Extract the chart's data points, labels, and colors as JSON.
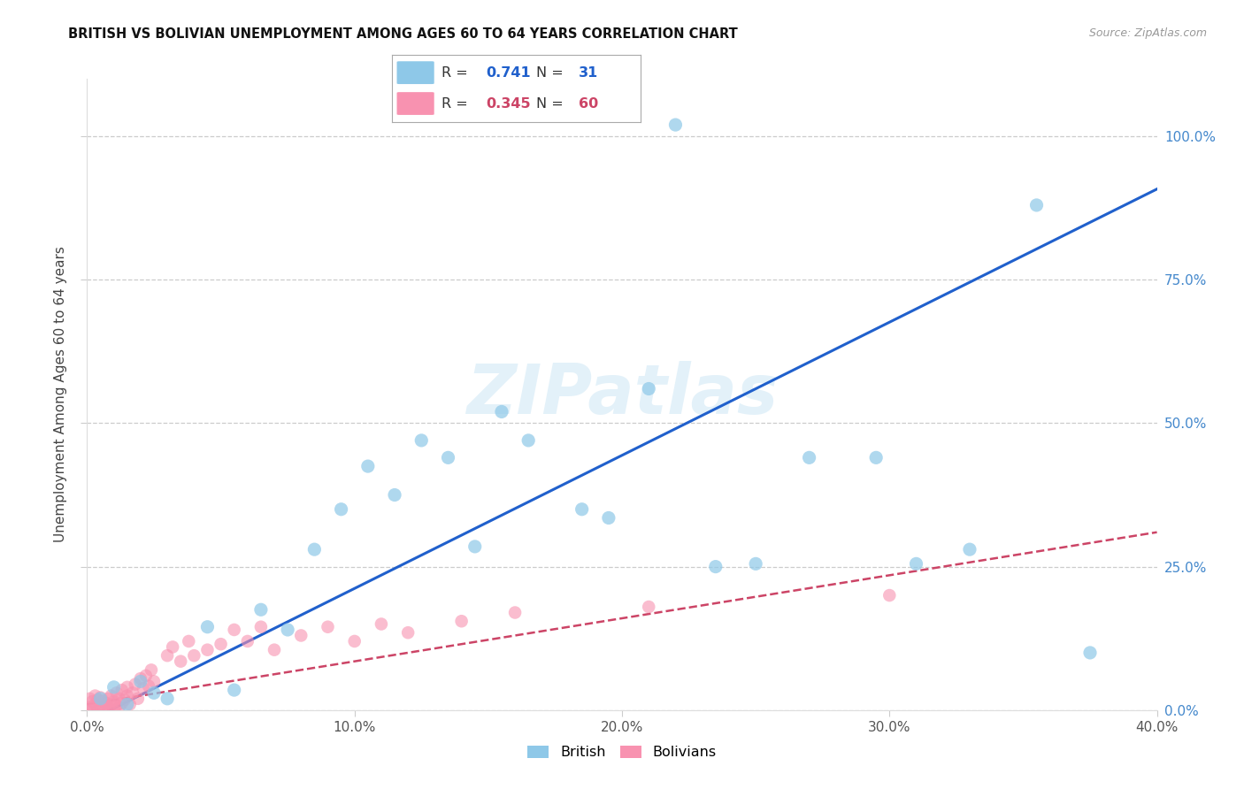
{
  "title": "BRITISH VS BOLIVIAN UNEMPLOYMENT AMONG AGES 60 TO 64 YEARS CORRELATION CHART",
  "source": "Source: ZipAtlas.com",
  "ylabel": "Unemployment Among Ages 60 to 64 years",
  "xlim": [
    0.0,
    0.4
  ],
  "ylim": [
    0.0,
    1.1
  ],
  "xticks": [
    0.0,
    0.1,
    0.2,
    0.3,
    0.4
  ],
  "yticks": [
    0.0,
    0.25,
    0.5,
    0.75,
    1.0
  ],
  "xticklabels": [
    "0.0%",
    "10.0%",
    "20.0%",
    "30.0%",
    "40.0%"
  ],
  "yticklabels_right": [
    "0.0%",
    "25.0%",
    "50.0%",
    "75.0%",
    "100.0%"
  ],
  "british_R": 0.741,
  "british_N": 31,
  "bolivian_R": 0.345,
  "bolivian_N": 60,
  "british_color": "#8ec8e8",
  "bolivian_color": "#f892b0",
  "british_line_color": "#2060cc",
  "bolivian_line_color": "#cc4466",
  "tick_color": "#4488cc",
  "watermark": "ZIPatlas",
  "british_x": [
    0.005,
    0.01,
    0.015,
    0.02,
    0.025,
    0.03,
    0.045,
    0.055,
    0.065,
    0.075,
    0.085,
    0.095,
    0.105,
    0.115,
    0.125,
    0.135,
    0.145,
    0.155,
    0.165,
    0.185,
    0.195,
    0.21,
    0.22,
    0.235,
    0.25,
    0.27,
    0.295,
    0.31,
    0.33,
    0.355,
    0.375
  ],
  "british_y": [
    0.02,
    0.04,
    0.01,
    0.05,
    0.03,
    0.02,
    0.145,
    0.035,
    0.175,
    0.14,
    0.28,
    0.35,
    0.425,
    0.375,
    0.47,
    0.44,
    0.285,
    0.52,
    0.47,
    0.35,
    0.335,
    0.56,
    1.02,
    0.25,
    0.255,
    0.44,
    0.44,
    0.255,
    0.28,
    0.88,
    0.1
  ],
  "bolivian_x": [
    0.0,
    0.001,
    0.001,
    0.002,
    0.002,
    0.003,
    0.003,
    0.004,
    0.004,
    0.005,
    0.005,
    0.006,
    0.006,
    0.007,
    0.007,
    0.008,
    0.008,
    0.009,
    0.009,
    0.01,
    0.01,
    0.011,
    0.011,
    0.012,
    0.012,
    0.013,
    0.013,
    0.014,
    0.015,
    0.015,
    0.016,
    0.017,
    0.018,
    0.019,
    0.02,
    0.021,
    0.022,
    0.023,
    0.024,
    0.025,
    0.03,
    0.032,
    0.035,
    0.038,
    0.04,
    0.045,
    0.05,
    0.055,
    0.06,
    0.065,
    0.07,
    0.08,
    0.09,
    0.1,
    0.11,
    0.12,
    0.14,
    0.16,
    0.21,
    0.3
  ],
  "bolivian_y": [
    0.0,
    0.005,
    0.02,
    0.0,
    0.015,
    0.01,
    0.025,
    0.0,
    0.018,
    0.008,
    0.022,
    0.003,
    0.016,
    0.0,
    0.012,
    0.005,
    0.02,
    0.01,
    0.025,
    0.0,
    0.015,
    0.008,
    0.03,
    0.005,
    0.02,
    0.012,
    0.035,
    0.018,
    0.025,
    0.04,
    0.01,
    0.03,
    0.045,
    0.02,
    0.055,
    0.038,
    0.06,
    0.042,
    0.07,
    0.05,
    0.095,
    0.11,
    0.085,
    0.12,
    0.095,
    0.105,
    0.115,
    0.14,
    0.12,
    0.145,
    0.105,
    0.13,
    0.145,
    0.12,
    0.15,
    0.135,
    0.155,
    0.17,
    0.18,
    0.2
  ]
}
